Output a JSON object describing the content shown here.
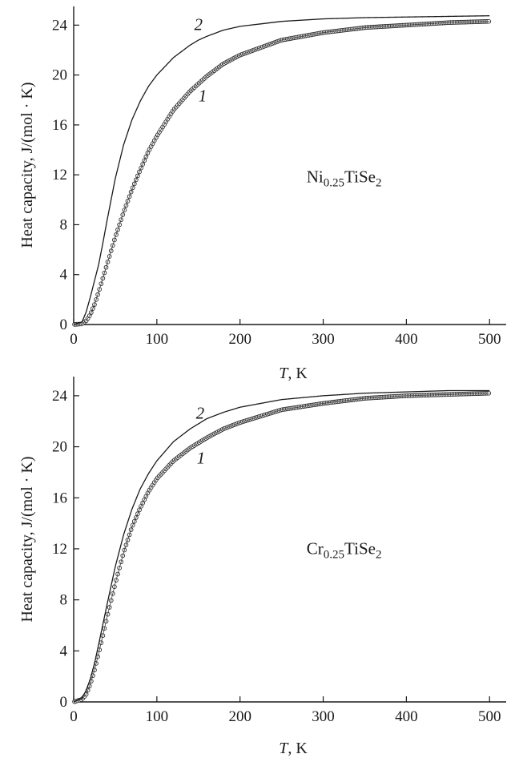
{
  "chart_data": [
    {
      "type": "line",
      "title": "",
      "xlabel_var": "T",
      "xlabel_unit": ", K",
      "ylabel": "Heat capacity, J/(mol · K)",
      "xlim": [
        0,
        520
      ],
      "ylim": [
        0,
        25.5
      ],
      "xticks": [
        0,
        100,
        200,
        300,
        400,
        500
      ],
      "yticks": [
        0,
        4,
        8,
        12,
        16,
        20,
        24
      ],
      "material": {
        "base": "Ni",
        "sub": "0.25",
        "mid": "TiSe",
        "sub2": "2"
      },
      "series": [
        {
          "name": "1",
          "style": "markers",
          "x": [
            0,
            10,
            15,
            20,
            25,
            30,
            40,
            50,
            60,
            70,
            80,
            90,
            100,
            120,
            140,
            150,
            160,
            180,
            200,
            250,
            300,
            350,
            400,
            450,
            500
          ],
          "y": [
            0,
            0.05,
            0.3,
            0.8,
            1.6,
            2.6,
            4.8,
            7.0,
            9.0,
            10.8,
            12.4,
            13.9,
            15.1,
            17.2,
            18.7,
            19.3,
            19.9,
            20.9,
            21.6,
            22.8,
            23.4,
            23.8,
            24.0,
            24.2,
            24.3
          ]
        },
        {
          "name": "2",
          "style": "line",
          "x": [
            0,
            10,
            15,
            20,
            25,
            30,
            35,
            40,
            50,
            60,
            70,
            80,
            90,
            100,
            120,
            140,
            150,
            160,
            180,
            200,
            250,
            300,
            350,
            400,
            450,
            500
          ],
          "y": [
            0,
            0.2,
            1.0,
            2.2,
            3.5,
            4.8,
            6.5,
            8.3,
            11.7,
            14.4,
            16.4,
            17.9,
            19.1,
            20.0,
            21.4,
            22.4,
            22.8,
            23.1,
            23.6,
            23.9,
            24.3,
            24.5,
            24.6,
            24.65,
            24.7,
            24.75
          ]
        }
      ],
      "curve_labels": [
        {
          "text": "2",
          "x": 150,
          "y": 23.6
        },
        {
          "text": "1",
          "x": 155,
          "y": 17.9
        }
      ],
      "material_pos": {
        "x": 280,
        "y": 11.4
      }
    },
    {
      "type": "line",
      "title": "",
      "xlabel_var": "T",
      "xlabel_unit": ", K",
      "ylabel": "Heat capacity, J/(mol · K)",
      "xlim": [
        0,
        520
      ],
      "ylim": [
        0,
        25.5
      ],
      "xticks": [
        0,
        100,
        200,
        300,
        400,
        500
      ],
      "yticks": [
        0,
        4,
        8,
        12,
        16,
        20,
        24
      ],
      "material": {
        "base": "Cr",
        "sub": "0.25",
        "mid": "TiSe",
        "sub2": "2"
      },
      "series": [
        {
          "name": "1",
          "style": "markers",
          "x": [
            0,
            10,
            15,
            20,
            25,
            30,
            40,
            50,
            60,
            70,
            80,
            90,
            100,
            120,
            140,
            150,
            160,
            180,
            200,
            250,
            300,
            350,
            400,
            450,
            500
          ],
          "y": [
            0,
            0.2,
            0.6,
            1.4,
            2.5,
            3.8,
            6.6,
            9.3,
            11.7,
            13.7,
            15.2,
            16.5,
            17.5,
            18.9,
            19.9,
            20.3,
            20.7,
            21.4,
            21.9,
            22.9,
            23.4,
            23.8,
            24.0,
            24.1,
            24.2
          ]
        },
        {
          "name": "2",
          "style": "line",
          "x": [
            0,
            10,
            15,
            20,
            25,
            30,
            40,
            50,
            60,
            70,
            80,
            90,
            100,
            120,
            140,
            150,
            160,
            180,
            200,
            250,
            300,
            350,
            400,
            450,
            500
          ],
          "y": [
            0,
            0.3,
            0.9,
            1.8,
            3.0,
            4.5,
            7.6,
            10.6,
            13.1,
            15.1,
            16.7,
            17.9,
            18.9,
            20.4,
            21.4,
            21.8,
            22.2,
            22.7,
            23.1,
            23.7,
            24.0,
            24.2,
            24.3,
            24.4,
            24.4
          ]
        }
      ],
      "curve_labels": [
        {
          "text": "2",
          "x": 152,
          "y": 22.2
        },
        {
          "text": "1",
          "x": 153,
          "y": 18.7
        }
      ],
      "material_pos": {
        "x": 280,
        "y": 11.6
      }
    }
  ]
}
